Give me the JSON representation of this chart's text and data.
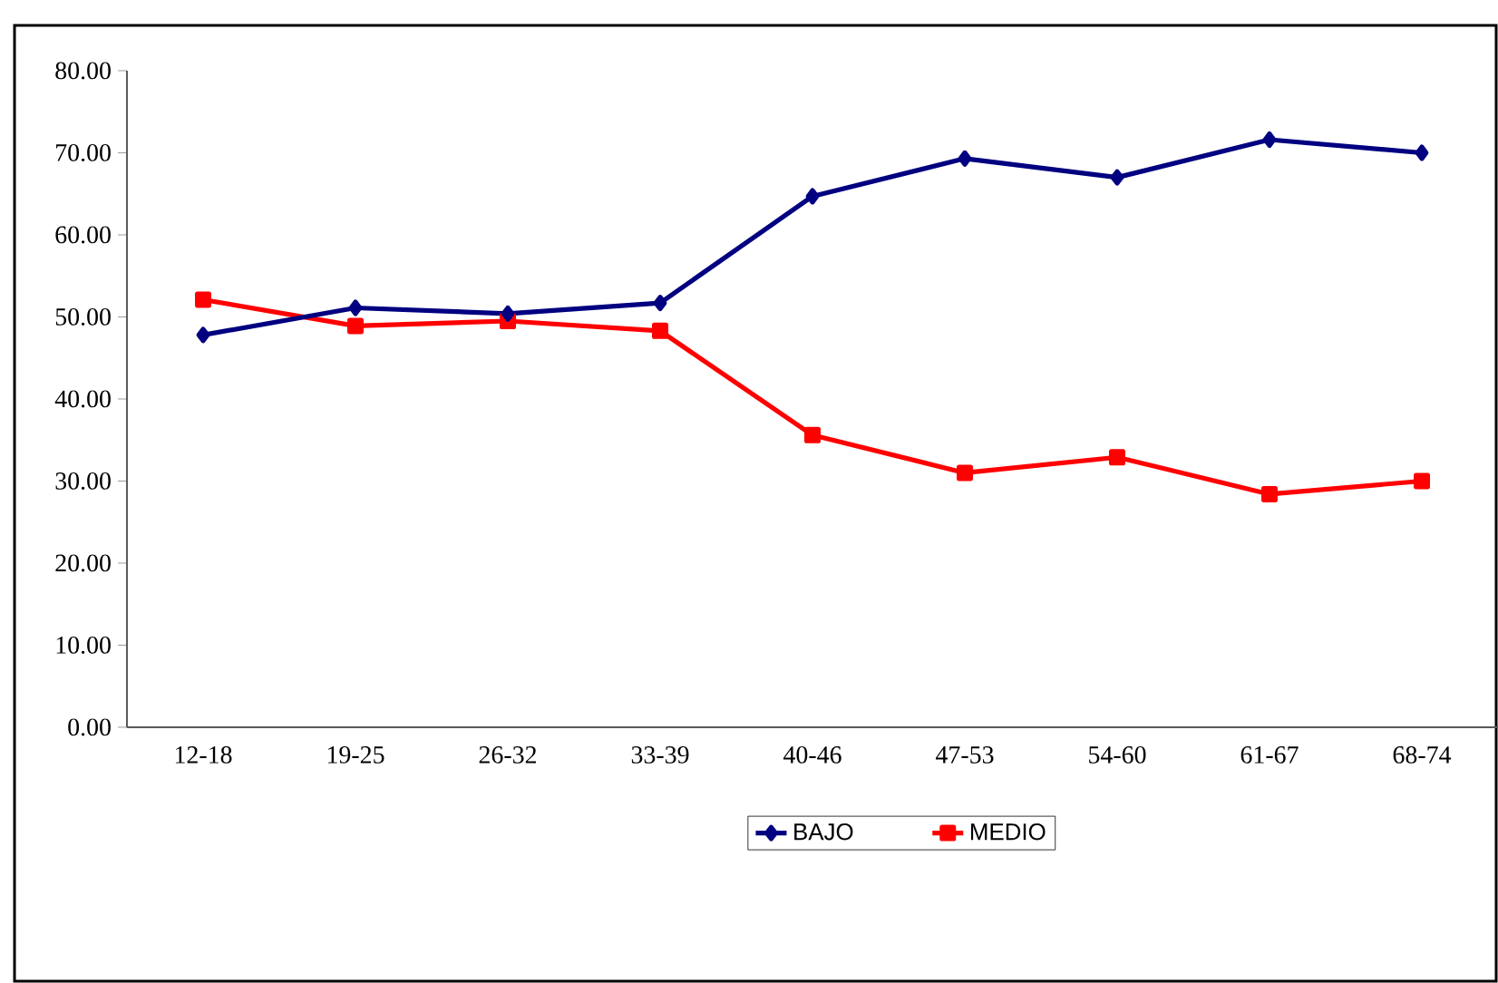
{
  "chart_data": {
    "type": "line",
    "categories": [
      "12-18",
      "19-25",
      "26-32",
      "33-39",
      "40-46",
      "47-53",
      "54-60",
      "61-67",
      "68-74"
    ],
    "series": [
      {
        "name": "BAJO",
        "color": "#000080",
        "marker": "diamond",
        "values": [
          47.8,
          51.1,
          50.4,
          51.7,
          64.7,
          69.3,
          67.0,
          71.6,
          70.0
        ]
      },
      {
        "name": "MEDIO",
        "color": "#ff0000",
        "marker": "square",
        "values": [
          52.1,
          48.9,
          49.5,
          48.3,
          35.6,
          31.0,
          32.9,
          28.4,
          30.0
        ]
      }
    ],
    "ylim": [
      0,
      80
    ],
    "yticks": [
      {
        "value": 0,
        "label": "0.00"
      },
      {
        "value": 10,
        "label": "10.00"
      },
      {
        "value": 20,
        "label": "20.00"
      },
      {
        "value": 30,
        "label": "30.00"
      },
      {
        "value": 40,
        "label": "40.00"
      },
      {
        "value": 50,
        "label": "50.00"
      },
      {
        "value": 60,
        "label": "60.00"
      },
      {
        "value": 70,
        "label": "70.00"
      },
      {
        "value": 80,
        "label": "80.00"
      }
    ],
    "legend": "bottom",
    "grid": false,
    "line_style": "solid"
  }
}
